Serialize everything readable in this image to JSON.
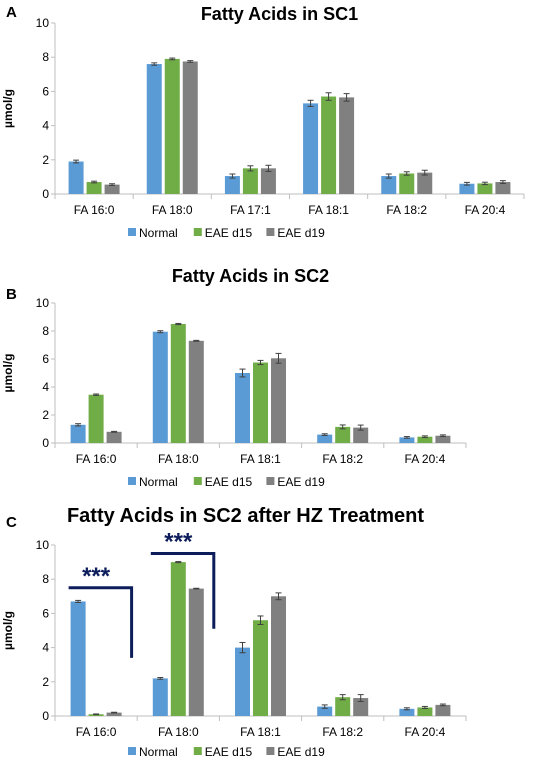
{
  "colors": {
    "Normal": "#5b9bd5",
    "EAE d15": "#70ad47",
    "EAE d19": "#808080",
    "bracket": "#0d1d5c",
    "error": "#404040"
  },
  "chart_data": [
    {
      "type": "bar",
      "panel": "A",
      "title": "Fatty Acids in SC1",
      "ylabel": "µmol/g",
      "xlabel": "",
      "ylim": [
        0,
        10
      ],
      "yticks": [
        0,
        2,
        4,
        6,
        8,
        10
      ],
      "grid": false,
      "legend": "bottom",
      "categories": [
        "FA 16:0",
        "FA 18:0",
        "FA 17:1",
        "FA 18:1",
        "FA 18:2",
        "FA 20:4"
      ],
      "series": [
        {
          "name": "Normal",
          "values": [
            1.9,
            7.6,
            1.05,
            5.3,
            1.05,
            0.6
          ],
          "errors": [
            0.08,
            0.07,
            0.12,
            0.18,
            0.12,
            0.08
          ]
        },
        {
          "name": "EAE d15",
          "values": [
            0.7,
            7.9,
            1.5,
            5.7,
            1.2,
            0.62
          ],
          "errors": [
            0.05,
            0.05,
            0.15,
            0.22,
            0.1,
            0.07
          ]
        },
        {
          "name": "EAE d19",
          "values": [
            0.55,
            7.75,
            1.5,
            5.65,
            1.25,
            0.7
          ],
          "errors": [
            0.05,
            0.05,
            0.18,
            0.22,
            0.14,
            0.08
          ]
        }
      ]
    },
    {
      "type": "bar",
      "panel": "B",
      "title": "Fatty Acids in SC2",
      "ylabel": "µmol/g",
      "xlabel": "",
      "ylim": [
        0,
        10
      ],
      "yticks": [
        0,
        2,
        4,
        6,
        8,
        10
      ],
      "grid": false,
      "legend": "bottom",
      "categories": [
        "FA 16:0",
        "FA 18:0",
        "FA 18:1",
        "FA 18:2",
        "FA 20:4"
      ],
      "series": [
        {
          "name": "Normal",
          "values": [
            1.3,
            7.95,
            5.0,
            0.6,
            0.4
          ],
          "errors": [
            0.08,
            0.07,
            0.28,
            0.06,
            0.06
          ]
        },
        {
          "name": "EAE d15",
          "values": [
            3.45,
            8.5,
            5.75,
            1.15,
            0.45
          ],
          "errors": [
            0.05,
            0.04,
            0.15,
            0.14,
            0.06
          ]
        },
        {
          "name": "EAE d19",
          "values": [
            0.8,
            7.3,
            6.05,
            1.1,
            0.52
          ],
          "errors": [
            0.03,
            0.03,
            0.35,
            0.18,
            0.06
          ]
        }
      ]
    },
    {
      "type": "bar",
      "panel": "C",
      "title": "Fatty Acids in SC2 after HZ Treatment",
      "ylabel": "µmol/g",
      "xlabel": "",
      "ylim": [
        0,
        10
      ],
      "yticks": [
        0,
        2,
        4,
        6,
        8,
        10
      ],
      "grid": false,
      "legend": "bottom",
      "categories": [
        "FA 16:0",
        "FA 18:0",
        "FA 18:1",
        "FA 18:2",
        "FA 20:4"
      ],
      "series": [
        {
          "name": "Normal",
          "values": [
            6.7,
            2.2,
            4.0,
            0.55,
            0.42
          ],
          "errors": [
            0.06,
            0.05,
            0.3,
            0.1,
            0.06
          ]
        },
        {
          "name": "EAE d15",
          "values": [
            0.1,
            9.0,
            5.6,
            1.1,
            0.5
          ],
          "errors": [
            0.02,
            0.03,
            0.25,
            0.15,
            0.06
          ]
        },
        {
          "name": "EAE d19",
          "values": [
            0.2,
            7.45,
            7.0,
            1.05,
            0.65
          ],
          "errors": [
            0.02,
            0.02,
            0.2,
            0.2,
            0.05
          ]
        }
      ],
      "annotations": [
        {
          "text": "***",
          "category": "FA 16:0",
          "top": 7.5,
          "bottom": 3.4
        },
        {
          "text": "***",
          "category": "FA 18:0",
          "top": 9.5,
          "bottom": 5.1
        }
      ]
    }
  ]
}
